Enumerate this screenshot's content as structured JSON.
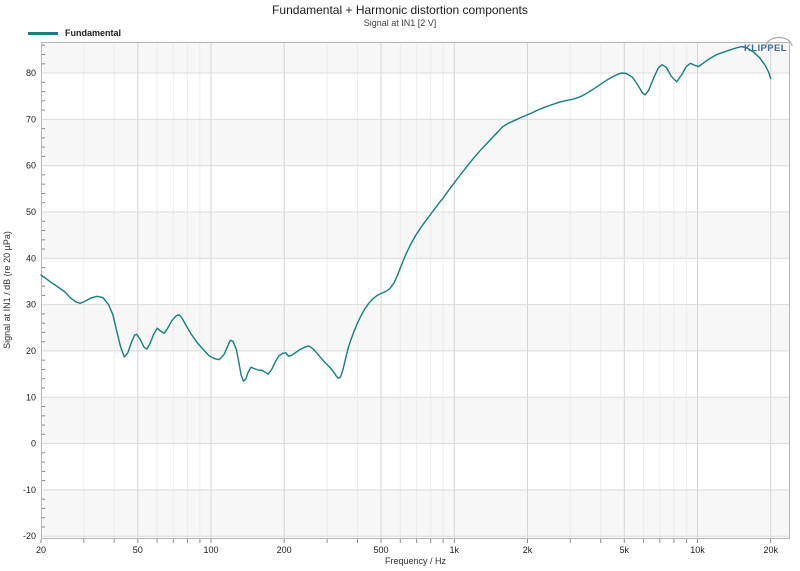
{
  "brand": {
    "name": "KLIPPEL",
    "color": "#3e6c99",
    "arc_color": "#a8a8a8"
  },
  "colors": {
    "plot_border": "#b7b7b7",
    "grid_major_h": "#dcdcdc",
    "grid_minor_v": "#ececec",
    "grid_major_v": "#d4d4d4",
    "tick": "#8a8a8a",
    "tick_label": "#1c1c1c",
    "band": "#f7f7f7",
    "accent": "#147f7b"
  },
  "chart_data": {
    "type": "line",
    "title": "Fundamental + Harmonic distortion components",
    "subtitle": "Signal at IN1 [2 V]",
    "xlabel": "Frequency / Hz",
    "ylabel": "Signal at IN1 / dB (re 20 µPa)",
    "x_scale": "log",
    "xlim": [
      20,
      24000
    ],
    "ylim": [
      -20.6,
      86.7
    ],
    "grid": true,
    "y_ticks": [
      -20,
      -10,
      0,
      10,
      20,
      30,
      40,
      50,
      60,
      70,
      80
    ],
    "y_minor_step": 2,
    "x_ticks": [
      {
        "value": 20,
        "label": "20"
      },
      {
        "value": 50,
        "label": "50"
      },
      {
        "value": 100,
        "label": "100"
      },
      {
        "value": 200,
        "label": "200"
      },
      {
        "value": 500,
        "label": "500"
      },
      {
        "value": 1000,
        "label": "1k"
      },
      {
        "value": 2000,
        "label": "2k"
      },
      {
        "value": 5000,
        "label": "5k"
      },
      {
        "value": 10000,
        "label": "10k"
      },
      {
        "value": 20000,
        "label": "20k"
      }
    ],
    "x_minor": [
      30,
      40,
      50,
      60,
      70,
      80,
      90,
      100,
      200,
      300,
      400,
      500,
      600,
      700,
      800,
      900,
      1000,
      2000,
      3000,
      4000,
      5000,
      6000,
      7000,
      8000,
      9000,
      10000,
      20000
    ],
    "alt_bands": {
      "color": "#f7f7f7",
      "ranges": [
        [
          80,
          90
        ],
        [
          60,
          70
        ],
        [
          40,
          50
        ],
        [
          20,
          30
        ],
        [
          0,
          10
        ],
        [
          -20,
          -10
        ]
      ]
    },
    "legend": {
      "position": "top-left",
      "items": [
        {
          "label": "Fundamental",
          "color": "#147f7b"
        }
      ]
    },
    "series": [
      {
        "name": "Fundamental",
        "color": "#147f7b",
        "width": 1.4,
        "points": [
          [
            20,
            36.4
          ],
          [
            21,
            35.6
          ],
          [
            22,
            34.8
          ],
          [
            23.5,
            33.8
          ],
          [
            25,
            32.8
          ],
          [
            26.5,
            31.4
          ],
          [
            28,
            30.5
          ],
          [
            29,
            30.3
          ],
          [
            30,
            30.6
          ],
          [
            32,
            31.4
          ],
          [
            34,
            31.8
          ],
          [
            36,
            31.5
          ],
          [
            38,
            29.9
          ],
          [
            39.5,
            27.8
          ],
          [
            41,
            24.2
          ],
          [
            42.5,
            20.9
          ],
          [
            44,
            18.7
          ],
          [
            45.5,
            19.6
          ],
          [
            47,
            21.8
          ],
          [
            48.5,
            23.4
          ],
          [
            49.5,
            23.6
          ],
          [
            51,
            22.6
          ],
          [
            53,
            20.8
          ],
          [
            54.5,
            20.4
          ],
          [
            56,
            21.5
          ],
          [
            58,
            23.5
          ],
          [
            60,
            24.9
          ],
          [
            62,
            24.3
          ],
          [
            64,
            23.8
          ],
          [
            66,
            24.7
          ],
          [
            69,
            26.5
          ],
          [
            72,
            27.6
          ],
          [
            74,
            27.8
          ],
          [
            76,
            27.1
          ],
          [
            79,
            25.5
          ],
          [
            83,
            23.6
          ],
          [
            88,
            21.7
          ],
          [
            93,
            20.3
          ],
          [
            98,
            19.0
          ],
          [
            103,
            18.4
          ],
          [
            108,
            18.1
          ],
          [
            113,
            19.2
          ],
          [
            117,
            21.0
          ],
          [
            120,
            22.3
          ],
          [
            123,
            22.1
          ],
          [
            127,
            20.4
          ],
          [
            130,
            17.7
          ],
          [
            133,
            14.8
          ],
          [
            136,
            13.5
          ],
          [
            139,
            13.9
          ],
          [
            142,
            15.4
          ],
          [
            146,
            16.5
          ],
          [
            150,
            16.2
          ],
          [
            156,
            15.9
          ],
          [
            162,
            15.8
          ],
          [
            167,
            15.4
          ],
          [
            172,
            15.0
          ],
          [
            178,
            16.1
          ],
          [
            184,
            17.7
          ],
          [
            190,
            18.9
          ],
          [
            197,
            19.5
          ],
          [
            203,
            19.6
          ],
          [
            208,
            18.9
          ],
          [
            214,
            19.0
          ],
          [
            222,
            19.6
          ],
          [
            232,
            20.3
          ],
          [
            243,
            20.8
          ],
          [
            252,
            21.1
          ],
          [
            262,
            20.5
          ],
          [
            273,
            19.5
          ],
          [
            285,
            18.3
          ],
          [
            298,
            17.2
          ],
          [
            310,
            16.3
          ],
          [
            320,
            15.4
          ],
          [
            328,
            14.5
          ],
          [
            334,
            14.1
          ],
          [
            341,
            14.4
          ],
          [
            349,
            16.1
          ],
          [
            357,
            18.3
          ],
          [
            366,
            20.6
          ],
          [
            376,
            22.4
          ],
          [
            387,
            24.2
          ],
          [
            399,
            25.9
          ],
          [
            413,
            27.5
          ],
          [
            428,
            29.0
          ],
          [
            444,
            30.2
          ],
          [
            461,
            31.2
          ],
          [
            480,
            31.9
          ],
          [
            500,
            32.4
          ],
          [
            521,
            32.8
          ],
          [
            542,
            33.4
          ],
          [
            565,
            34.7
          ],
          [
            585,
            36.4
          ],
          [
            606,
            38.5
          ],
          [
            630,
            40.7
          ],
          [
            660,
            42.9
          ],
          [
            695,
            45.0
          ],
          [
            730,
            46.7
          ],
          [
            770,
            48.4
          ],
          [
            815,
            50.1
          ],
          [
            860,
            51.7
          ],
          [
            905,
            53.2
          ],
          [
            955,
            54.9
          ],
          [
            1010,
            56.6
          ],
          [
            1070,
            58.3
          ],
          [
            1130,
            59.9
          ],
          [
            1200,
            61.6
          ],
          [
            1270,
            63.1
          ],
          [
            1350,
            64.6
          ],
          [
            1430,
            66.0
          ],
          [
            1510,
            67.3
          ],
          [
            1580,
            68.4
          ],
          [
            1660,
            69.1
          ],
          [
            1760,
            69.7
          ],
          [
            1860,
            70.3
          ],
          [
            1960,
            70.8
          ],
          [
            2070,
            71.3
          ],
          [
            2200,
            72.0
          ],
          [
            2350,
            72.6
          ],
          [
            2500,
            73.1
          ],
          [
            2700,
            73.7
          ],
          [
            2900,
            74.1
          ],
          [
            3100,
            74.4
          ],
          [
            3300,
            74.9
          ],
          [
            3500,
            75.6
          ],
          [
            3700,
            76.4
          ],
          [
            4000,
            77.6
          ],
          [
            4300,
            78.7
          ],
          [
            4600,
            79.5
          ],
          [
            4850,
            80.0
          ],
          [
            5100,
            79.9
          ],
          [
            5400,
            79.1
          ],
          [
            5700,
            77.3
          ],
          [
            5950,
            75.6
          ],
          [
            6100,
            75.3
          ],
          [
            6300,
            76.3
          ],
          [
            6600,
            78.9
          ],
          [
            6900,
            81.1
          ],
          [
            7150,
            81.8
          ],
          [
            7450,
            81.2
          ],
          [
            7800,
            79.3
          ],
          [
            8200,
            78.1
          ],
          [
            8600,
            79.6
          ],
          [
            9000,
            81.4
          ],
          [
            9350,
            82.1
          ],
          [
            9700,
            81.7
          ],
          [
            10100,
            81.4
          ],
          [
            10600,
            82.2
          ],
          [
            11300,
            83.2
          ],
          [
            12000,
            84.0
          ],
          [
            12800,
            84.5
          ],
          [
            13600,
            85.0
          ],
          [
            14400,
            85.4
          ],
          [
            15200,
            85.7
          ],
          [
            16100,
            85.3
          ],
          [
            17000,
            84.5
          ],
          [
            18000,
            83.3
          ],
          [
            19000,
            81.6
          ],
          [
            19600,
            80.2
          ],
          [
            20000,
            78.8
          ]
        ]
      }
    ]
  }
}
